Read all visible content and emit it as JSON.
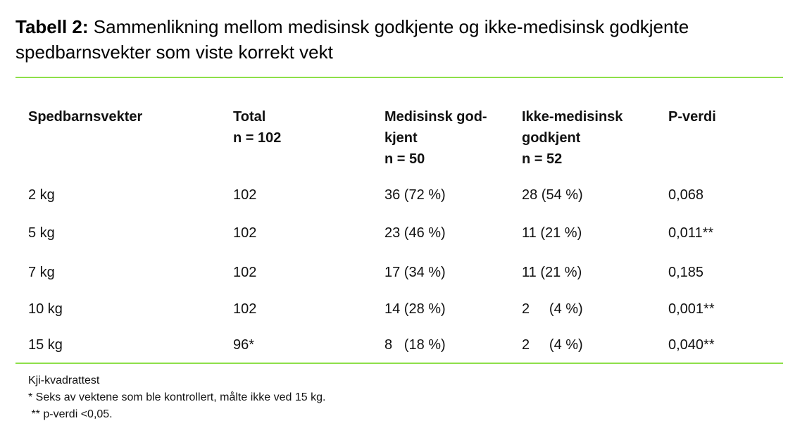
{
  "title": {
    "label": "Tabell 2:",
    "text": " Sammenlikning mellom medisinsk godkjente og ikke-medisinsk godkjente spedbarnsvekter som viste korrekt vekt"
  },
  "colors": {
    "rule": "#8ee04a"
  },
  "table": {
    "headers": [
      "Spedbarnsvekter",
      "Total\nn = 102",
      "Medisinsk god-\nkjent\nn = 50",
      "Ikke-medisinsk\ngodkjent\nn = 52",
      "P-verdi"
    ],
    "rows": [
      [
        "2 kg",
        "102",
        "36 (72 %)",
        "28 (54 %)",
        "0,068"
      ],
      [
        "5 kg",
        "102",
        "23 (46 %)",
        "11 (21 %)",
        "0,011**"
      ],
      [
        "7 kg",
        "102",
        "17 (34 %)",
        "11 (21 %)",
        "0,185"
      ],
      [
        "10 kg",
        "102",
        "14 (28 %)",
        "2     (4 %)",
        "0,001**"
      ],
      [
        "15 kg",
        "96*",
        "8   (18 %)",
        "2     (4 %)",
        "0,040**"
      ]
    ]
  },
  "notes": [
    "Kji-kvadrattest",
    "* Seks av vektene som ble kontrollert, målte ikke ved 15 kg.",
    " ** p-verdi <0,05."
  ]
}
